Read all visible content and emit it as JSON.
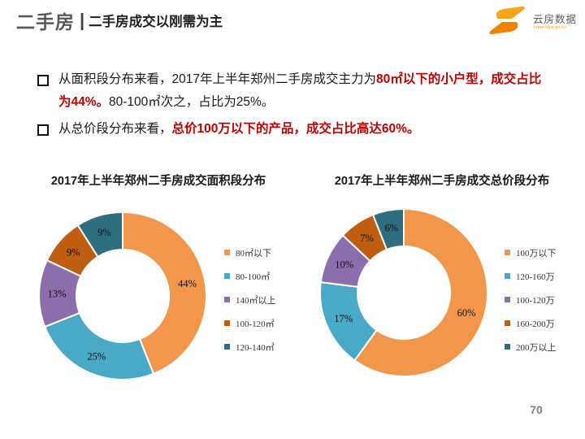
{
  "header": {
    "section": "二手房",
    "separator": "|",
    "title": "二手房成交以刚需为主"
  },
  "logo": {
    "name": "云房数据",
    "subtext": "YUNFANG DATA"
  },
  "bullets": [
    {
      "segments": [
        {
          "text": "从面积段分布来看，2017年上半年郑州二手房成交主力为",
          "em": false
        },
        {
          "text": "80㎡以下的小户型，成交占比为44%。",
          "em": true
        },
        {
          "text": "80-100㎡次之，占比为25%。",
          "em": false
        }
      ]
    },
    {
      "segments": [
        {
          "text": "从总价段分布来看，",
          "em": false
        },
        {
          "text": "总价100万以下的产品，成交占比高达60%。",
          "em": true
        }
      ]
    }
  ],
  "colors": {
    "accent_red": "#c00000",
    "palette": [
      "#F2964B",
      "#49A9C6",
      "#8A6FAC",
      "#BF5E10",
      "#2D6E80"
    ],
    "logo_orange_light": "#F9A51A",
    "logo_orange_dark": "#F08300"
  },
  "chart_data": [
    {
      "type": "pie",
      "subtype": "donut",
      "title": "2017年上半年郑州二手房成交面积段分布",
      "categories": [
        "80㎡以下",
        "80-100㎡",
        "140㎡以上",
        "100-120㎡",
        "120-140㎡"
      ],
      "values": [
        44,
        25,
        13,
        9,
        9
      ],
      "unit": "%",
      "legend_position": "right",
      "labels_inside": true,
      "start_angle_deg": 0,
      "direction": "clockwise"
    },
    {
      "type": "pie",
      "subtype": "donut",
      "title": "2017年上半年郑州二手房成交总价段分布",
      "categories": [
        "100万以下",
        "120-160万",
        "100-120万",
        "160-200万",
        "200万以上"
      ],
      "values": [
        60,
        17,
        10,
        7,
        6
      ],
      "unit": "%",
      "legend_position": "right",
      "labels_inside": true,
      "start_angle_deg": 0,
      "direction": "clockwise"
    }
  ],
  "page_number": "70"
}
